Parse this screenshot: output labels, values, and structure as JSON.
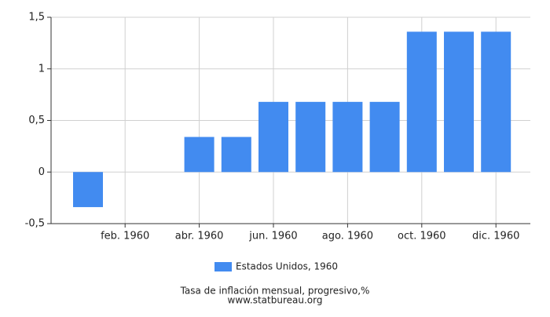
{
  "chart_data": {
    "type": "bar",
    "categories": [
      null,
      "feb. 1960",
      null,
      "abr. 1960",
      null,
      "jun. 1960",
      null,
      "ago. 1960",
      null,
      "oct. 1960",
      null,
      "dic. 1960"
    ],
    "series": [
      {
        "name": "Estados Unidos, 1960",
        "color": "#428bf0",
        "values": [
          -0.34,
          0,
          0,
          0.34,
          0.34,
          0.68,
          0.68,
          0.68,
          0.68,
          1.36,
          1.36,
          1.36
        ]
      }
    ],
    "ylim": [
      -0.5,
      1.5
    ],
    "yticks": [
      {
        "value": -0.5,
        "label": "-0,5"
      },
      0,
      {
        "value": 0.5,
        "label": "0,5"
      },
      1,
      {
        "value": 1.5,
        "label": "1,5"
      }
    ],
    "grid": true,
    "legend": "bottom",
    "caption": "Tasa de inflación mensual, progresivo,%",
    "source": "www.statbureau.org"
  }
}
